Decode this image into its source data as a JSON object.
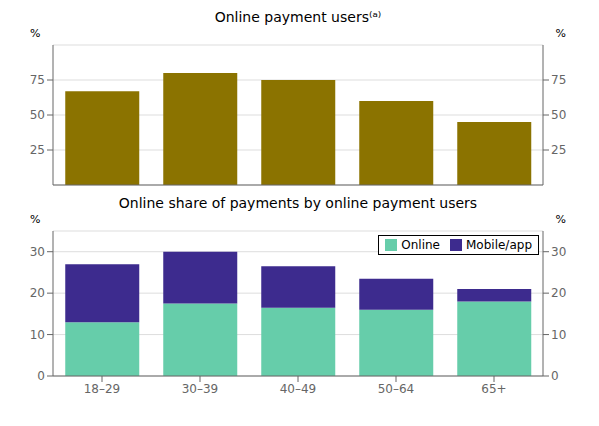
{
  "chart_data": [
    {
      "type": "bar",
      "title": "Online payment users⁽ᵃ⁾",
      "categories": [
        "18–29",
        "30–39",
        "40–49",
        "50–64",
        "65+"
      ],
      "values": [
        67,
        80,
        75,
        60,
        45
      ],
      "color": "#8B7300",
      "ylim": [
        0,
        100
      ],
      "yticks": [
        25,
        50,
        75
      ],
      "y2lim": [
        0,
        100
      ],
      "y2ticks": [
        25,
        50,
        75
      ],
      "ylabel": "%",
      "y2label": "%",
      "grid": true,
      "tick_labels": "y"
    },
    {
      "type": "bar",
      "title": "Online share of payments by online payment users",
      "categories": [
        "18–29",
        "30–39",
        "40–49",
        "50–64",
        "65+"
      ],
      "stacked": true,
      "series": [
        {
          "name": "Online",
          "color": "#66CDAA",
          "values": [
            13,
            17.5,
            16.5,
            16,
            18
          ]
        },
        {
          "name": "Mobile/app",
          "color": "#3D2B8E",
          "values": [
            14,
            12.5,
            10,
            7.5,
            3
          ]
        }
      ],
      "ylim": [
        0,
        35
      ],
      "yticks": [
        0,
        10,
        20,
        30
      ],
      "y2lim": [
        0,
        35
      ],
      "y2ticks": [
        0,
        10,
        20,
        30
      ],
      "ylabel": "%",
      "y2label": "%",
      "grid": true,
      "legend": "upper right"
    }
  ]
}
